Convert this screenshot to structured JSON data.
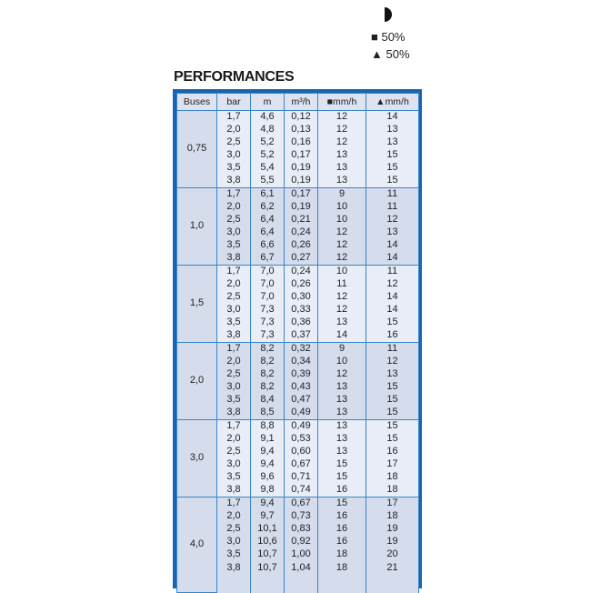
{
  "legend": {
    "half_icon": "half-circle-icon",
    "square_label": "■ 50%",
    "triangle_label": "▲ 50%"
  },
  "title": "PERFORMANCES",
  "headers": [
    "Buses",
    "bar",
    "m",
    "m³/h",
    "■mm/h",
    "▲mm/h"
  ],
  "groups": [
    {
      "buses": "0,75",
      "rows": [
        [
          "1,7",
          "4,6",
          "0,12",
          "12",
          "14"
        ],
        [
          "2,0",
          "4,8",
          "0,13",
          "12",
          "13"
        ],
        [
          "2,5",
          "5,2",
          "0,16",
          "12",
          "13"
        ],
        [
          "3,0",
          "5,2",
          "0,17",
          "13",
          "15"
        ],
        [
          "3,5",
          "5,4",
          "0,19",
          "13",
          "15"
        ],
        [
          "3,8",
          "5,5",
          "0,19",
          "13",
          "15"
        ]
      ]
    },
    {
      "buses": "1,0",
      "rows": [
        [
          "1,7",
          "6,1",
          "0,17",
          "9",
          "11"
        ],
        [
          "2,0",
          "6,2",
          "0,19",
          "10",
          "11"
        ],
        [
          "2,5",
          "6,4",
          "0,21",
          "10",
          "12"
        ],
        [
          "3,0",
          "6,4",
          "0,24",
          "12",
          "13"
        ],
        [
          "3,5",
          "6,6",
          "0,26",
          "12",
          "14"
        ],
        [
          "3,8",
          "6,7",
          "0,27",
          "12",
          "14"
        ]
      ]
    },
    {
      "buses": "1,5",
      "rows": [
        [
          "1,7",
          "7,0",
          "0,24",
          "10",
          "11"
        ],
        [
          "2,0",
          "7,0",
          "0,26",
          "11",
          "12"
        ],
        [
          "2,5",
          "7,0",
          "0,30",
          "12",
          "14"
        ],
        [
          "3,0",
          "7,3",
          "0,33",
          "12",
          "14"
        ],
        [
          "3,5",
          "7,3",
          "0,36",
          "13",
          "15"
        ],
        [
          "3,8",
          "7,3",
          "0,37",
          "14",
          "16"
        ]
      ]
    },
    {
      "buses": "2,0",
      "rows": [
        [
          "1,7",
          "8,2",
          "0,32",
          "9",
          "11"
        ],
        [
          "2,0",
          "8,2",
          "0,34",
          "10",
          "12"
        ],
        [
          "2,5",
          "8,2",
          "0,39",
          "12",
          "13"
        ],
        [
          "3,0",
          "8,2",
          "0,43",
          "13",
          "15"
        ],
        [
          "3,5",
          "8,4",
          "0,47",
          "13",
          "15"
        ],
        [
          "3,8",
          "8,5",
          "0,49",
          "13",
          "15"
        ]
      ]
    },
    {
      "buses": "3,0",
      "rows": [
        [
          "1,7",
          "8,8",
          "0,49",
          "13",
          "15"
        ],
        [
          "2,0",
          "9,1",
          "0,53",
          "13",
          "15"
        ],
        [
          "2,5",
          "9,4",
          "0,60",
          "13",
          "16"
        ],
        [
          "3,0",
          "9,4",
          "0,67",
          "15",
          "17"
        ],
        [
          "3,5",
          "9,6",
          "0,71",
          "15",
          "18"
        ],
        [
          "3,8",
          "9,8",
          "0,74",
          "16",
          "18"
        ]
      ]
    },
    {
      "buses": "4,0",
      "rows": [
        [
          "1,7",
          "9,4",
          "0,67",
          "15",
          "17"
        ],
        [
          "2,0",
          "9,7",
          "0,73",
          "16",
          "18"
        ],
        [
          "2,5",
          "10,1",
          "0,83",
          "16",
          "19"
        ],
        [
          "3,0",
          "10,6",
          "0,92",
          "16",
          "19"
        ],
        [
          "3,5",
          "10,7",
          "1,00",
          "18",
          "20"
        ],
        [
          "3,8",
          "10,7",
          "1,04",
          "18",
          "21"
        ]
      ]
    }
  ]
}
